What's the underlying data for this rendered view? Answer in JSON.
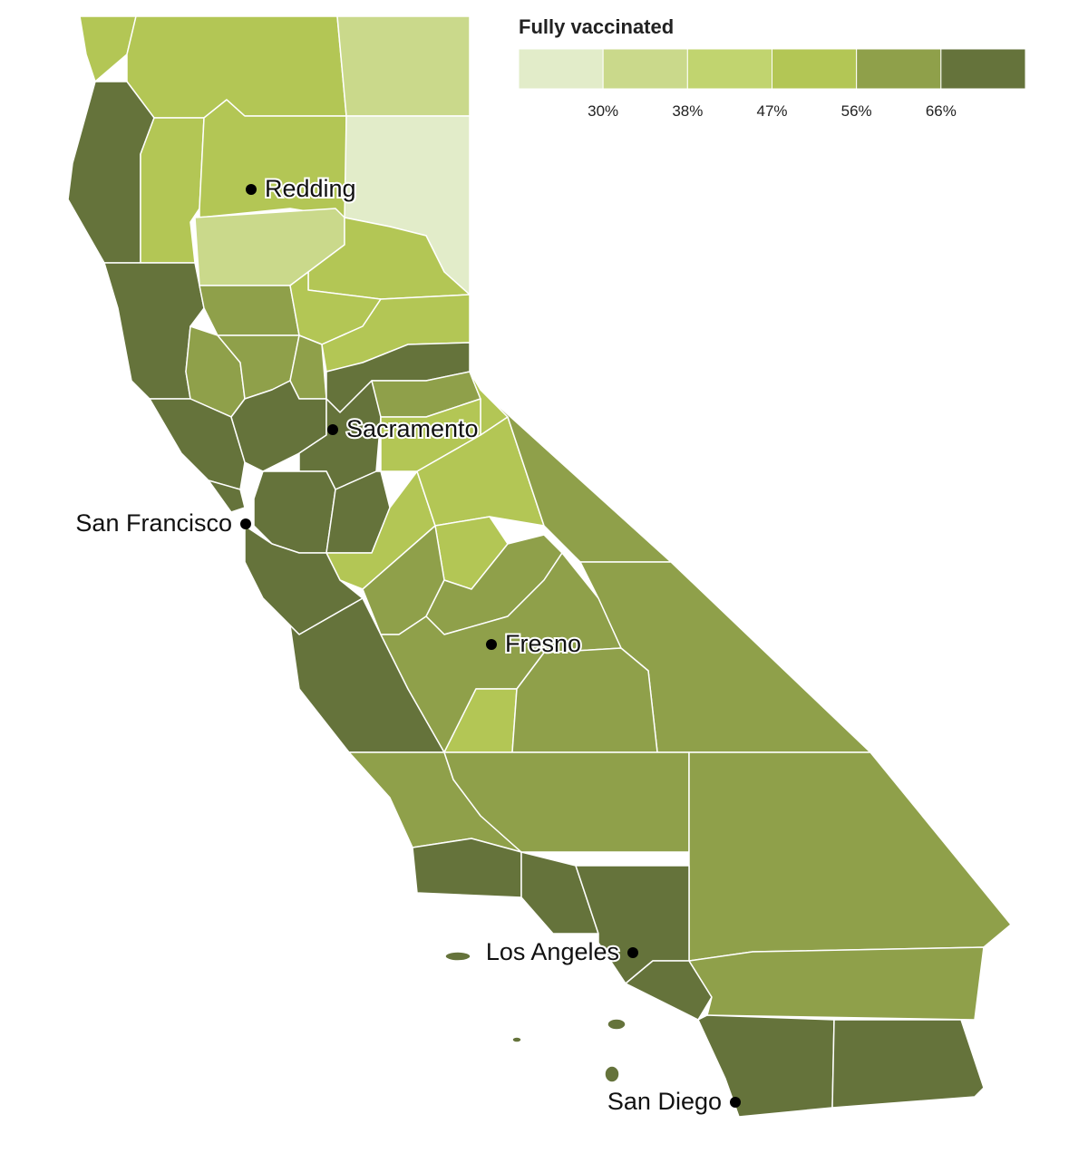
{
  "legend": {
    "title": "Fully vaccinated",
    "colors": [
      "#e2ecc9",
      "#cad98b",
      "#c1d46f",
      "#b3c655",
      "#8fa04a",
      "#65733b"
    ],
    "ticks": [
      {
        "value": 30,
        "label": "30%"
      },
      {
        "value": 38,
        "label": "38%"
      },
      {
        "value": 47,
        "label": "47%"
      },
      {
        "value": 56,
        "label": "56%"
      },
      {
        "value": 66,
        "label": "66%"
      }
    ]
  },
  "cities": [
    "Redding",
    "Sacramento",
    "San Francisco",
    "Fresno",
    "Los Angeles",
    "San Diego"
  ]
}
